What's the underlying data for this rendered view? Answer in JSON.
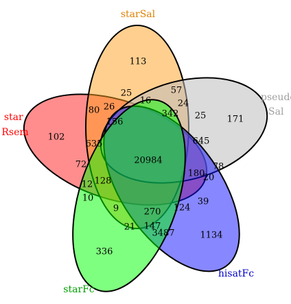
{
  "sets": [
    {
      "key": "starRsem",
      "label_lines": [
        "star",
        "Rsem"
      ],
      "color": "#ff0000",
      "fill": "#ff3030",
      "fill_opacity": 0.55
    },
    {
      "key": "starSal",
      "label_lines": [
        "starSal"
      ],
      "color": "#e08000",
      "fill": "#ffa020",
      "fill_opacity": 0.5
    },
    {
      "key": "pseudoSal",
      "label_lines": [
        "pseudo",
        "Sal"
      ],
      "color": "#a0a0a0",
      "fill": "#bdbdbd",
      "fill_opacity": 0.55
    },
    {
      "key": "hisatFc",
      "label_lines": [
        "hisatFc"
      ],
      "color": "#0000cc",
      "fill": "#1010ff",
      "fill_opacity": 0.5
    },
    {
      "key": "starFc",
      "label_lines": [
        "starFc"
      ],
      "color": "#00a000",
      "fill": "#00ff00",
      "fill_opacity": 0.5
    }
  ],
  "counts": [
    {
      "regions": [
        "starSal"
      ],
      "value": "113"
    },
    {
      "regions": [
        "pseudoSal"
      ],
      "value": "171"
    },
    {
      "regions": [
        "starRsem"
      ],
      "value": "102"
    },
    {
      "regions": [
        "starFc"
      ],
      "value": "336"
    },
    {
      "regions": [
        "hisatFc"
      ],
      "value": "1134"
    },
    {
      "regions": [
        "a"
      ],
      "value": "25"
    },
    {
      "regions": [
        "b"
      ],
      "value": "57"
    },
    {
      "regions": [
        "c"
      ],
      "value": "16"
    },
    {
      "regions": [
        "d"
      ],
      "value": "24"
    },
    {
      "regions": [
        "e"
      ],
      "value": "80"
    },
    {
      "regions": [
        "f"
      ],
      "value": "26"
    },
    {
      "regions": [
        "g"
      ],
      "value": "156"
    },
    {
      "regions": [
        "h"
      ],
      "value": "342"
    },
    {
      "regions": [
        "i"
      ],
      "value": "25"
    },
    {
      "regions": [
        "j"
      ],
      "value": "635"
    },
    {
      "regions": [
        "k"
      ],
      "value": "645"
    },
    {
      "regions": [
        "l"
      ],
      "value": "72"
    },
    {
      "regions": [
        "m"
      ],
      "value": "20984"
    },
    {
      "regions": [
        "n"
      ],
      "value": "78"
    },
    {
      "regions": [
        "o"
      ],
      "value": "180"
    },
    {
      "regions": [
        "p"
      ],
      "value": "20"
    },
    {
      "regions": [
        "q"
      ],
      "value": "12"
    },
    {
      "regions": [
        "r"
      ],
      "value": "128"
    },
    {
      "regions": [
        "s"
      ],
      "value": "10"
    },
    {
      "regions": [
        "t"
      ],
      "value": "39"
    },
    {
      "regions": [
        "u"
      ],
      "value": "9"
    },
    {
      "regions": [
        "v"
      ],
      "value": "270"
    },
    {
      "regions": [
        "w"
      ],
      "value": "124"
    },
    {
      "regions": [
        "x"
      ],
      "value": "21"
    },
    {
      "regions": [
        "y"
      ],
      "value": "147"
    },
    {
      "regions": [
        "z"
      ],
      "value": "3487"
    }
  ]
}
